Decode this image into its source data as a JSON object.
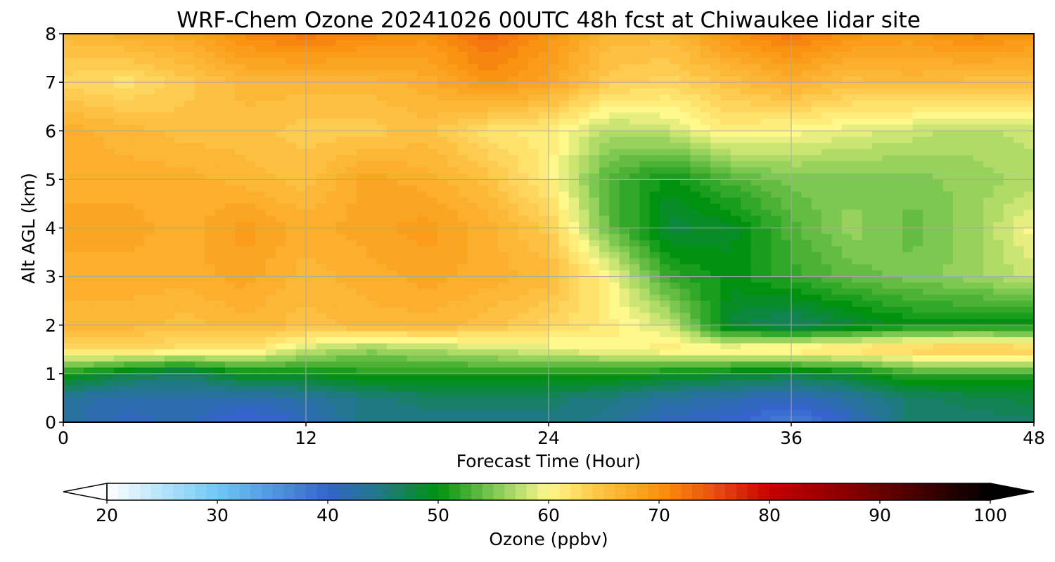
{
  "chart_data": {
    "type": "heatmap",
    "title": "WRF-Chem Ozone  20241026 00UTC 48h fcst at Chiwaukee lidar site",
    "xlabel": "Forecast Time (Hour)",
    "ylabel": "Alt AGL (km)",
    "xlim": [
      0,
      48
    ],
    "ylim": [
      0,
      8
    ],
    "x_ticks": [
      "0",
      "12",
      "24",
      "36",
      "48"
    ],
    "y_ticks": [
      "0",
      "1",
      "2",
      "3",
      "4",
      "5",
      "6",
      "7",
      "8"
    ],
    "grid": true,
    "colorbar": {
      "label": "Ozone  (ppbv)",
      "range": [
        20,
        100
      ],
      "extend": "both",
      "ticks": [
        "20",
        "30",
        "40",
        "50",
        "60",
        "70",
        "80",
        "90",
        "100"
      ],
      "stops": [
        {
          "v": 20,
          "c": "#ffffff"
        },
        {
          "v": 30,
          "c": "#6ec8f5"
        },
        {
          "v": 40,
          "c": "#3464cc"
        },
        {
          "v": 45,
          "c": "#1e7a80"
        },
        {
          "v": 50,
          "c": "#00920f"
        },
        {
          "v": 55,
          "c": "#7dc850"
        },
        {
          "v": 60,
          "c": "#fff88a"
        },
        {
          "v": 65,
          "c": "#fdc040"
        },
        {
          "v": 70,
          "c": "#fa9410"
        },
        {
          "v": 75,
          "c": "#e85010"
        },
        {
          "v": 80,
          "c": "#c80000"
        },
        {
          "v": 90,
          "c": "#6a0000"
        },
        {
          "v": 100,
          "c": "#000000"
        }
      ]
    },
    "field": {
      "hours": [
        0,
        3,
        6,
        9,
        12,
        15,
        18,
        21,
        24,
        27,
        30,
        33,
        36,
        39,
        42,
        45,
        48
      ],
      "altitudes_km": [
        0,
        0.5,
        1,
        1.5,
        2,
        3,
        4,
        5,
        6,
        7,
        8
      ],
      "ozone_ppbv": [
        [
          43,
          41,
          42,
          39,
          41,
          45,
          45,
          45,
          45,
          44,
          41,
          40,
          37,
          41,
          46,
          46,
          46
        ],
        [
          43,
          42,
          42,
          42,
          43,
          45,
          46,
          46,
          46,
          45,
          43,
          42,
          41,
          43,
          46,
          47,
          48
        ],
        [
          51,
          48,
          46,
          50,
          50,
          51,
          51,
          51,
          51,
          51,
          50,
          49,
          48,
          49,
          52,
          52,
          52
        ],
        [
          62,
          63,
          62,
          62,
          58,
          56,
          57,
          58,
          59,
          60,
          61,
          61,
          62,
          63,
          64,
          65,
          64
        ],
        [
          66,
          66,
          65,
          66,
          65,
          66,
          66,
          65,
          63,
          61,
          58,
          48,
          46,
          48,
          50,
          50,
          50
        ],
        [
          67,
          67,
          67,
          68,
          66,
          67,
          68,
          67,
          66,
          60,
          52,
          50,
          52,
          54,
          55,
          56,
          58
        ],
        [
          68,
          68,
          67,
          69,
          67,
          68,
          69,
          67,
          64,
          54,
          48,
          49,
          53,
          56,
          54,
          56,
          60
        ],
        [
          67,
          67,
          67,
          66,
          65,
          68,
          67,
          65,
          61,
          53,
          50,
          53,
          55,
          55,
          55,
          56,
          57
        ],
        [
          67,
          66,
          65,
          65,
          64,
          64,
          65,
          62,
          61,
          57,
          58,
          61,
          60,
          59,
          58,
          57,
          58
        ],
        [
          63,
          62,
          64,
          66,
          66,
          66,
          67,
          70,
          68,
          64,
          63,
          65,
          67,
          65,
          66,
          65,
          65
        ],
        [
          66,
          67,
          68,
          71,
          72,
          71,
          70,
          73,
          70,
          66,
          66,
          70,
          72,
          70,
          69,
          71,
          70
        ]
      ]
    }
  }
}
